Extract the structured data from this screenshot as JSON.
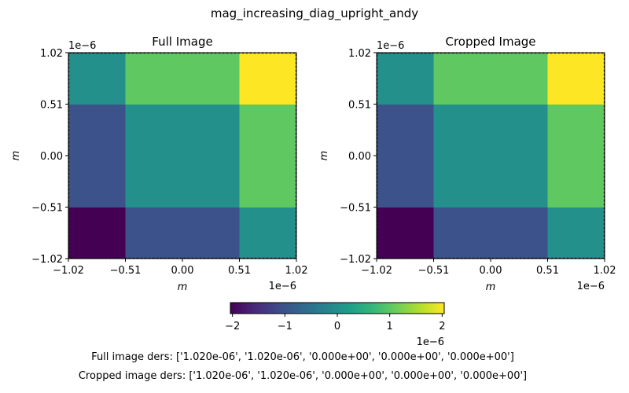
{
  "figure": {
    "suptitle": "mag_increasing_diag_upright_andy",
    "notes": [
      "Full image ders: ['1.020e-06', '1.020e-06', '0.000e+00', '0.000e+00', '0.000e+00']",
      "Cropped image ders: ['1.020e-06', '1.020e-06', '0.000e+00', '0.000e+00', '0.000e+00']"
    ],
    "colorbar": {
      "colormap": "viridis",
      "range": [
        -2.04,
        2.04
      ],
      "ticks": [
        -2,
        -1,
        0,
        1,
        2
      ],
      "tick_labels": [
        "−2",
        "−1",
        "0",
        "1",
        "2"
      ],
      "offset_label": "1e−6"
    }
  },
  "chart_data": [
    {
      "type": "heatmap",
      "title": "Full Image",
      "xlabel": "m",
      "ylabel": "m",
      "x_edges": [
        -1.02e-06,
        -5.1e-07,
        5.1e-07,
        1.02e-06
      ],
      "y_edges": [
        -1.02e-06,
        -5.1e-07,
        5.1e-07,
        1.02e-06
      ],
      "values_by_row_bottom_to_top": [
        [
          -2.04e-06,
          -1.02e-06,
          0.0
        ],
        [
          -1.02e-06,
          0.0,
          1.02e-06
        ],
        [
          0.0,
          1.02e-06,
          2.04e-06
        ]
      ],
      "xticks": [
        -1.02e-06,
        -5.1e-07,
        0.0,
        5.1e-07,
        1.02e-06
      ],
      "xtick_labels": [
        "−1.02",
        "−0.51",
        "0.00",
        "0.51",
        "1.02"
      ],
      "yticks": [
        -1.02e-06,
        -5.1e-07,
        0.0,
        5.1e-07,
        1.02e-06
      ],
      "ytick_labels": [
        "−1.02",
        "−0.51",
        "0.00",
        "0.51",
        "1.02"
      ],
      "x_offset_label": "1e−6",
      "y_offset_label": "1e−6",
      "crop_outline": "dashed black",
      "grid": false
    },
    {
      "type": "heatmap",
      "title": "Cropped Image",
      "xlabel": "m",
      "ylabel": "m",
      "x_edges": [
        -1.02e-06,
        -5.1e-07,
        5.1e-07,
        1.02e-06
      ],
      "y_edges": [
        -1.02e-06,
        -5.1e-07,
        5.1e-07,
        1.02e-06
      ],
      "values_by_row_bottom_to_top": [
        [
          -2.04e-06,
          -1.02e-06,
          0.0
        ],
        [
          -1.02e-06,
          0.0,
          1.02e-06
        ],
        [
          0.0,
          1.02e-06,
          2.04e-06
        ]
      ],
      "xticks": [
        -1.02e-06,
        -5.1e-07,
        0.0,
        5.1e-07,
        1.02e-06
      ],
      "xtick_labels": [
        "−1.02",
        "−0.51",
        "0.00",
        "0.51",
        "1.02"
      ],
      "yticks": [
        -1.02e-06,
        -5.1e-07,
        0.0,
        5.1e-07,
        1.02e-06
      ],
      "ytick_labels": [
        "−1.02",
        "−0.51",
        "0.00",
        "0.51",
        "1.02"
      ],
      "x_offset_label": "1e−6",
      "y_offset_label": "1e−6",
      "crop_outline": "dashed black",
      "grid": false
    }
  ]
}
